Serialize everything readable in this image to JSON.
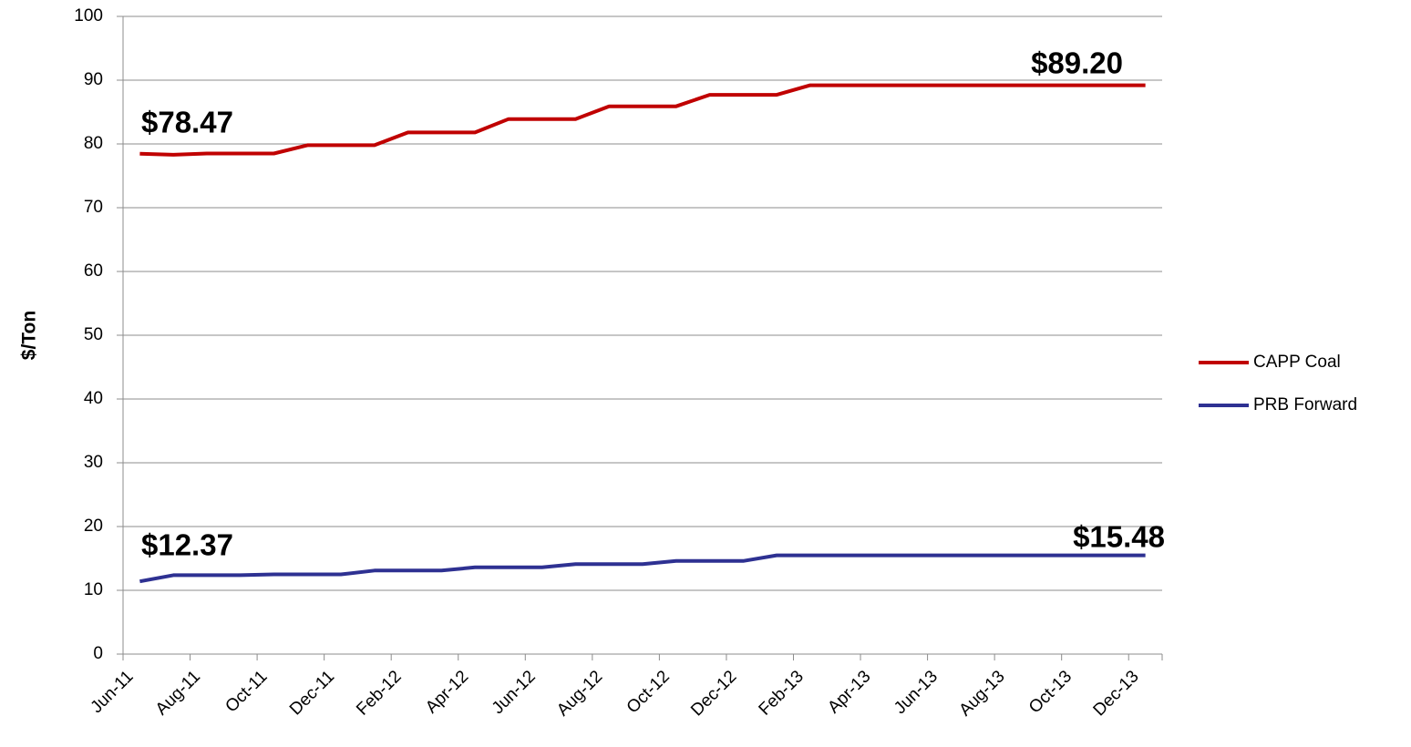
{
  "chart_data": {
    "type": "line",
    "y_label": "$/Ton",
    "categories": [
      "Jun-11",
      null,
      "Aug-11",
      null,
      "Oct-11",
      null,
      "Dec-11",
      null,
      "Feb-12",
      null,
      "Apr-12",
      null,
      "Jun-12",
      null,
      "Aug-12",
      null,
      "Oct-12",
      null,
      "Dec-12",
      null,
      "Feb-13",
      null,
      "Apr-13",
      null,
      "Jun-13",
      null,
      "Aug-13",
      null,
      "Oct-13",
      null,
      "Dec-13"
    ],
    "series": [
      {
        "name": "CAPP Coal",
        "color": "#c00000",
        "values": [
          78.47,
          78.3,
          78.5,
          78.5,
          78.5,
          79.8,
          79.8,
          79.8,
          81.8,
          81.8,
          81.8,
          83.9,
          83.9,
          83.9,
          85.9,
          85.9,
          85.9,
          87.7,
          87.7,
          87.7,
          89.2,
          89.2,
          89.2,
          89.2,
          89.2,
          89.2,
          89.2,
          89.2,
          89.2,
          89.2,
          89.2
        ]
      },
      {
        "name": "PRB Forward",
        "color": "#2e3192",
        "values": [
          11.4,
          12.37,
          12.37,
          12.37,
          12.5,
          12.5,
          12.5,
          13.1,
          13.1,
          13.1,
          13.6,
          13.6,
          13.6,
          14.1,
          14.1,
          14.1,
          14.6,
          14.6,
          14.6,
          15.48,
          15.48,
          15.48,
          15.48,
          15.48,
          15.48,
          15.48,
          15.48,
          15.48,
          15.48,
          15.48,
          15.48
        ]
      }
    ],
    "annotations": [
      "$78.47",
      "$89.20",
      "$12.37",
      "$15.48"
    ],
    "ylim": [
      0,
      100
    ],
    "yticks": [
      0,
      10,
      20,
      30,
      40,
      50,
      60,
      70,
      80,
      90,
      100
    ],
    "grid": true,
    "legend": "right"
  }
}
